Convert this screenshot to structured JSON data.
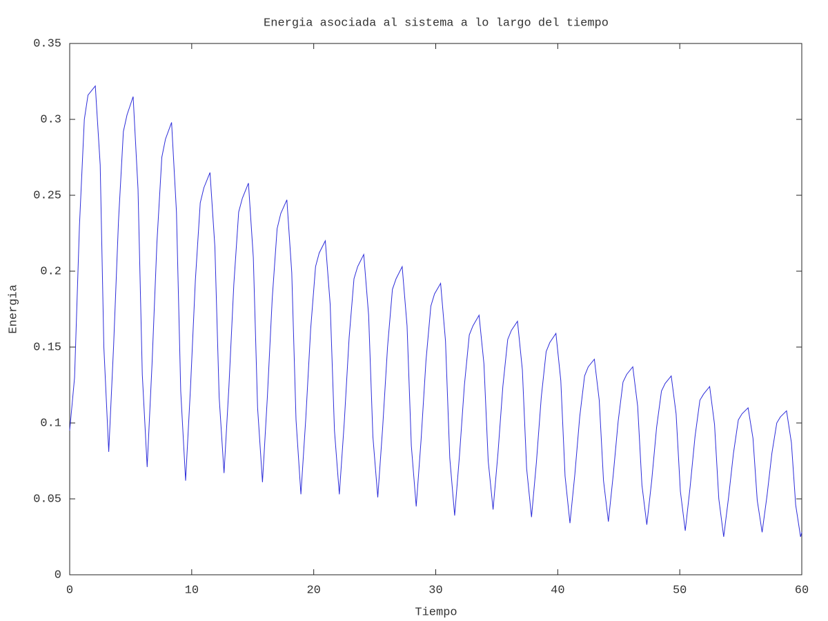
{
  "chart_data": {
    "type": "line",
    "title": "Energia asociada al sistema a lo largo del tiempo",
    "x_label": "Tiempo",
    "y_label": "Energia",
    "xlim": [
      0,
      60
    ],
    "ylim": [
      0,
      0.35
    ],
    "xticks": [
      0,
      10,
      20,
      30,
      40,
      50,
      60
    ],
    "yticks": [
      0,
      0.05,
      0.1,
      0.15,
      0.2,
      0.25,
      0.3,
      0.35
    ],
    "grid": false,
    "x": [
      0,
      0.4,
      0.8,
      1.2,
      1.5,
      2.1,
      2.5,
      2.8,
      3.2,
      3.6,
      4.0,
      4.4,
      4.7,
      5.2,
      5.6,
      5.95,
      6.35,
      6.75,
      7.15,
      7.55,
      7.85,
      8.35,
      8.75,
      9.1,
      9.5,
      9.9,
      10.3,
      10.7,
      11.0,
      11.5,
      11.9,
      12.25,
      12.65,
      13.05,
      13.45,
      13.85,
      14.15,
      14.65,
      15.05,
      15.4,
      15.8,
      16.2,
      16.6,
      17.0,
      17.3,
      17.8,
      18.2,
      18.55,
      18.95,
      19.35,
      19.75,
      20.15,
      20.45,
      20.95,
      21.35,
      21.7,
      22.1,
      22.5,
      22.9,
      23.3,
      23.6,
      24.1,
      24.5,
      24.85,
      25.25,
      25.65,
      26.05,
      26.45,
      26.75,
      27.25,
      27.65,
      28.0,
      28.4,
      28.8,
      29.2,
      29.6,
      29.9,
      30.4,
      30.8,
      31.15,
      31.55,
      31.95,
      32.35,
      32.75,
      33.05,
      33.55,
      33.95,
      34.3,
      34.7,
      35.1,
      35.5,
      35.9,
      36.2,
      36.7,
      37.1,
      37.45,
      37.85,
      38.25,
      38.65,
      39.05,
      39.35,
      39.85,
      40.25,
      40.6,
      41.0,
      41.4,
      41.8,
      42.2,
      42.5,
      43.0,
      43.4,
      43.75,
      44.15,
      44.55,
      44.95,
      45.35,
      45.65,
      46.15,
      46.55,
      46.9,
      47.3,
      47.7,
      48.1,
      48.5,
      48.8,
      49.3,
      49.7,
      50.05,
      50.45,
      50.85,
      51.25,
      51.65,
      51.95,
      52.45,
      52.85,
      53.2,
      53.6,
      54.0,
      54.4,
      54.8,
      55.1,
      55.6,
      56.0,
      56.35,
      56.75,
      57.15,
      57.55,
      57.95,
      58.25,
      58.75,
      59.15,
      59.5,
      59.9,
      60
    ],
    "series": [
      {
        "name": "Energia",
        "color": "#2b2bd9",
        "values": [
          0.095,
          0.13,
          0.23,
          0.3,
          0.316,
          0.322,
          0.27,
          0.15,
          0.081,
          0.151,
          0.233,
          0.292,
          0.303,
          0.315,
          0.254,
          0.132,
          0.071,
          0.139,
          0.219,
          0.275,
          0.287,
          0.298,
          0.239,
          0.121,
          0.062,
          0.123,
          0.194,
          0.245,
          0.255,
          0.265,
          0.216,
          0.117,
          0.067,
          0.124,
          0.191,
          0.239,
          0.248,
          0.258,
          0.209,
          0.11,
          0.061,
          0.117,
          0.182,
          0.228,
          0.238,
          0.247,
          0.199,
          0.102,
          0.053,
          0.103,
          0.162,
          0.203,
          0.212,
          0.22,
          0.178,
          0.095,
          0.053,
          0.1,
          0.156,
          0.195,
          0.203,
          0.211,
          0.171,
          0.091,
          0.051,
          0.097,
          0.15,
          0.188,
          0.195,
          0.203,
          0.164,
          0.085,
          0.045,
          0.089,
          0.141,
          0.177,
          0.185,
          0.192,
          0.154,
          0.077,
          0.039,
          0.079,
          0.125,
          0.158,
          0.164,
          0.171,
          0.139,
          0.075,
          0.043,
          0.08,
          0.124,
          0.155,
          0.161,
          0.167,
          0.135,
          0.07,
          0.038,
          0.074,
          0.117,
          0.147,
          0.153,
          0.159,
          0.128,
          0.065,
          0.034,
          0.066,
          0.104,
          0.131,
          0.137,
          0.142,
          0.115,
          0.062,
          0.035,
          0.066,
          0.101,
          0.127,
          0.132,
          0.137,
          0.111,
          0.059,
          0.033,
          0.062,
          0.097,
          0.121,
          0.126,
          0.131,
          0.106,
          0.055,
          0.029,
          0.058,
          0.091,
          0.115,
          0.119,
          0.124,
          0.099,
          0.05,
          0.025,
          0.051,
          0.08,
          0.102,
          0.106,
          0.11,
          0.09,
          0.049,
          0.028,
          0.052,
          0.08,
          0.1,
          0.104,
          0.108,
          0.087,
          0.046,
          0.025,
          0.028
        ]
      }
    ]
  }
}
